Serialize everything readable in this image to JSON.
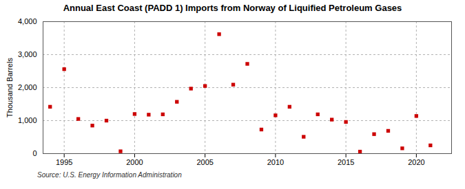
{
  "chart_data": {
    "type": "scatter",
    "title": "Annual East Coast (PADD 1) Imports from Norway of Liquified Petroleum Gases",
    "ylabel": "Thousand Barrels",
    "source": "Source: U.S. Energy Information Administration",
    "x": [
      1994,
      1995,
      1996,
      1997,
      1998,
      1999,
      2000,
      2001,
      2002,
      2003,
      2004,
      2005,
      2006,
      2007,
      2008,
      2009,
      2010,
      2011,
      2012,
      2013,
      2014,
      2015,
      2016,
      2017,
      2018,
      2019,
      2020,
      2021
    ],
    "values": [
      1420,
      2560,
      1050,
      850,
      1000,
      70,
      1200,
      1180,
      1190,
      1570,
      1970,
      2050,
      3620,
      2090,
      2720,
      730,
      1160,
      1420,
      510,
      1190,
      1030,
      960,
      60,
      590,
      690,
      160,
      1140,
      250
    ],
    "color": "#cc0000",
    "marker": "square",
    "xlim": [
      1993.5,
      2022.5
    ],
    "xticks": [
      1995,
      2000,
      2005,
      2010,
      2015,
      2020
    ],
    "ylim": [
      0,
      4000
    ],
    "yticks": [
      0,
      {
        "value": 1000,
        "label": "1,000"
      },
      {
        "value": 2000,
        "label": "2,000"
      },
      {
        "value": 3000,
        "label": "3,000"
      },
      {
        "value": 4000,
        "label": "4,000"
      }
    ],
    "grid": true
  }
}
